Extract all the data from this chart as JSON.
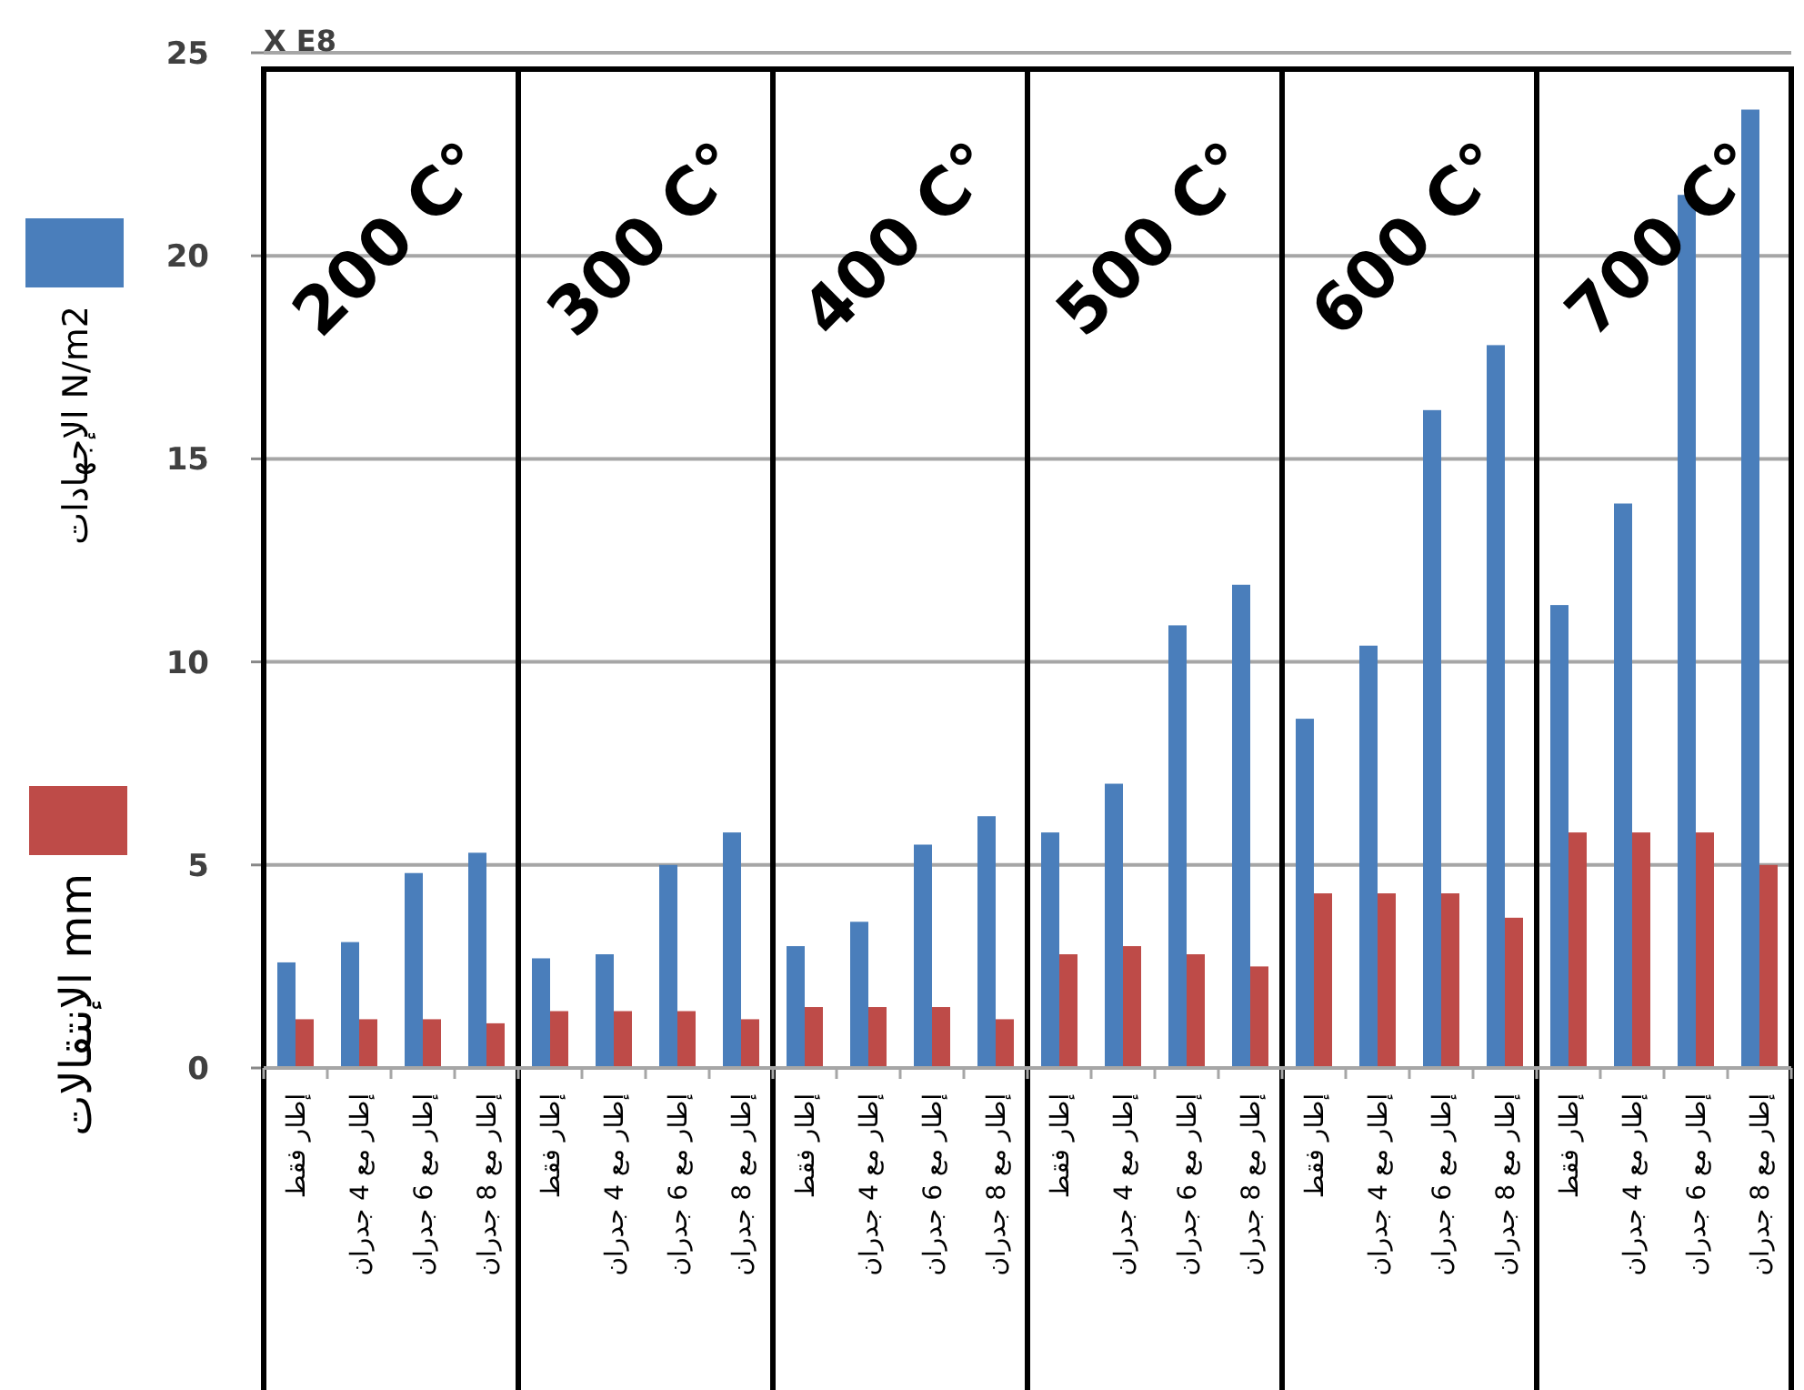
{
  "chart_data": {
    "type": "bar",
    "categories": [
      "إطار فقط",
      "إطار مع 4 جدران",
      "إطار مع 6 جدران",
      "إطار مع 8 جدران",
      "إطار فقط",
      "إطار مع 4 جدران",
      "إطار مع 6 جدران",
      "إطار مع 8 جدران",
      "إطار فقط",
      "إطار مع 4 جدران",
      "إطار مع 6 جدران",
      "إطار مع 8 جدران",
      "إطار فقط",
      "إطار مع 4 جدران",
      "إطار مع 6 جدران",
      "إطار مع 8 جدران",
      "إطار فقط",
      "إطار مع 4 جدران",
      "إطار مع 6 جدران",
      "إطار مع 8 جدران",
      "إطار فقط",
      "إطار مع 4 جدران",
      "إطار مع 6 جدران",
      "إطار مع 8 جدران"
    ],
    "series": [
      {
        "name": "الإجهادات N/m2",
        "color": "#4a7ebb",
        "values": [
          2.6,
          3.1,
          4.8,
          5.3,
          2.7,
          2.8,
          5.0,
          5.8,
          3.0,
          3.6,
          5.5,
          6.2,
          5.8,
          7.0,
          10.9,
          11.9,
          8.6,
          10.4,
          16.2,
          17.8,
          11.4,
          13.9,
          21.5,
          23.6
        ]
      },
      {
        "name": "الإنتقالات mm",
        "color": "#be4b48",
        "values": [
          1.2,
          1.2,
          1.2,
          1.1,
          1.4,
          1.4,
          1.4,
          1.2,
          1.5,
          1.5,
          1.5,
          1.2,
          2.8,
          3.0,
          2.8,
          2.5,
          4.3,
          4.3,
          4.3,
          3.7,
          5.8,
          5.8,
          5.8,
          5.0
        ]
      }
    ],
    "ylim": [
      0,
      25
    ],
    "yticks": [
      0,
      5,
      10,
      15,
      20,
      25
    ],
    "grid": "y",
    "legend": "left",
    "annotations": [
      "200 C°",
      "300 C°",
      "400 C°",
      "500 C°",
      "600 C°",
      "700 C°",
      "X E8"
    ]
  }
}
